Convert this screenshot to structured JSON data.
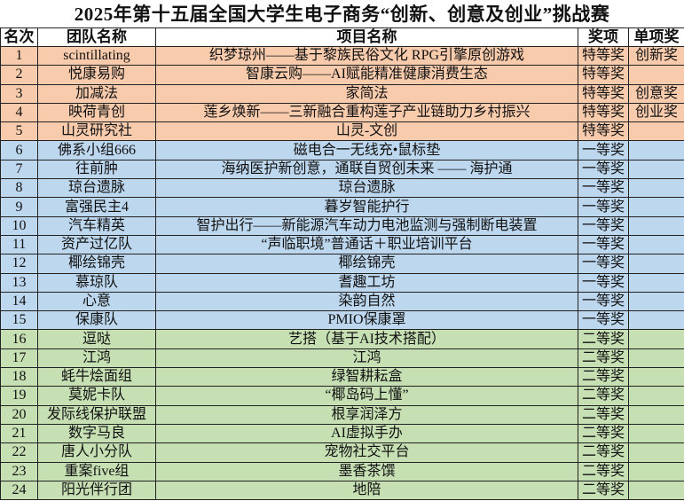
{
  "title": "2025年第十五届全国大学生电子商务“创新、创意及创业”挑战赛",
  "headers": [
    "名次",
    "团队名称",
    "项目名称",
    "奖项",
    "单项奖"
  ],
  "colors": {
    "特等奖": "#f8cbad",
    "一等奖": "#bdd7ee",
    "二等奖": "#c6e0b4"
  },
  "rows": [
    {
      "rank": "1",
      "team": "scintillating",
      "project": "织梦琼州——基于黎族民俗文化 RPG引擎原创游戏",
      "award": "特等奖",
      "special": "创新奖"
    },
    {
      "rank": "2",
      "team": "悦康易购",
      "project": "智康云购——AI赋能精准健康消费生态",
      "award": "特等奖",
      "special": ""
    },
    {
      "rank": "3",
      "team": "加减法",
      "project": "家简法",
      "award": "特等奖",
      "special": "创意奖"
    },
    {
      "rank": "4",
      "team": "映荷青创",
      "project": "莲乡焕新——三新融合重构莲子产业链助力乡村振兴",
      "award": "特等奖",
      "special": "创业奖"
    },
    {
      "rank": "5",
      "team": "山灵研究社",
      "project": "山灵-文创",
      "award": "特等奖",
      "special": ""
    },
    {
      "rank": "6",
      "team": "佛系小组666",
      "project": "磁电合一无线充•鼠标垫",
      "award": "一等奖",
      "special": ""
    },
    {
      "rank": "7",
      "team": "往前肿",
      "project": "海纳医护新创意，通联自贸创未来 —— 海护通",
      "award": "一等奖",
      "special": ""
    },
    {
      "rank": "8",
      "team": "琼台遗脉",
      "project": "琼台遗脉",
      "award": "一等奖",
      "special": ""
    },
    {
      "rank": "9",
      "team": "富强民主4",
      "project": "暮岁智能护行",
      "award": "一等奖",
      "special": ""
    },
    {
      "rank": "10",
      "team": "汽车精英",
      "project": "智护出行——新能源汽车动力电池监测与强制断电装置",
      "award": "一等奖",
      "special": ""
    },
    {
      "rank": "11",
      "team": "资产过亿队",
      "project": "“声临职境”普通话＋职业培训平台",
      "award": "一等奖",
      "special": ""
    },
    {
      "rank": "12",
      "team": "椰绘锦壳",
      "project": "椰绘锦壳",
      "award": "一等奖",
      "special": ""
    },
    {
      "rank": "13",
      "team": "慕琼队",
      "project": "耆趣工坊",
      "award": "一等奖",
      "special": ""
    },
    {
      "rank": "14",
      "team": "心意",
      "project": "染韵自然",
      "award": "一等奖",
      "special": ""
    },
    {
      "rank": "15",
      "team": "保康队",
      "project": "PMIO保康罩",
      "award": "一等奖",
      "special": ""
    },
    {
      "rank": "16",
      "team": "逗哒",
      "project": "艺搭（基于AI技术搭配）",
      "award": "二等奖",
      "special": ""
    },
    {
      "rank": "17",
      "team": "江鸿",
      "project": "江鸿",
      "award": "二等奖",
      "special": ""
    },
    {
      "rank": "18",
      "team": "蚝牛烩面组",
      "project": "绿智耕耘盒",
      "award": "二等奖",
      "special": ""
    },
    {
      "rank": "19",
      "team": "莫妮卡队",
      "project": "“椰岛码上懂”",
      "award": "二等奖",
      "special": ""
    },
    {
      "rank": "20",
      "team": "发际线保护联盟",
      "project": "根享润泽方",
      "award": "二等奖",
      "special": ""
    },
    {
      "rank": "21",
      "team": "数字马良",
      "project": "AI虚拟手办",
      "award": "二等奖",
      "special": ""
    },
    {
      "rank": "22",
      "team": "唐人小分队",
      "project": "宠物社交平台",
      "award": "二等奖",
      "special": ""
    },
    {
      "rank": "23",
      "team": "重案five组",
      "project": "墨香茶馔",
      "award": "二等奖",
      "special": ""
    },
    {
      "rank": "24",
      "team": "阳光伴行团",
      "project": "地陪",
      "award": "二等奖",
      "special": ""
    }
  ]
}
